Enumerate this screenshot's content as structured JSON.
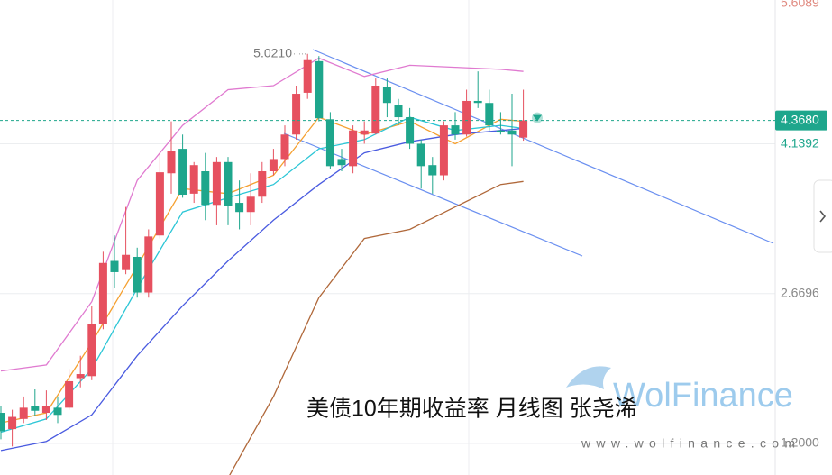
{
  "chart_data": {
    "type": "candlestick",
    "open": [
      1.5,
      1.34,
      1.44,
      1.57,
      1.5,
      1.55,
      1.55,
      1.84,
      1.86,
      2.37,
      2.99,
      2.9,
      3.03,
      2.68,
      3.24,
      3.85,
      4.09,
      3.65,
      3.87,
      3.54,
      3.96,
      3.56,
      3.47,
      3.62,
      3.87,
      3.99,
      4.23,
      4.64,
      4.95,
      4.38,
      3.99,
      3.92,
      4.23,
      4.24,
      4.7,
      4.52,
      4.4,
      4.14,
      3.93,
      3.83,
      4.32,
      4.23,
      4.56,
      4.54,
      4.27,
      4.27,
      4.2
    ],
    "high": [
      1.57,
      1.53,
      1.66,
      1.73,
      1.72,
      1.66,
      1.93,
      2.06,
      2.55,
      3.08,
      3.24,
      3.52,
      3.12,
      3.3,
      4.05,
      4.36,
      4.23,
      3.96,
      4.05,
      4.01,
      4.01,
      3.78,
      3.85,
      3.96,
      4.09,
      4.32,
      4.71,
      5.021,
      5.0,
      4.45,
      4.09,
      4.32,
      4.36,
      4.78,
      4.78,
      4.58,
      4.49,
      4.18,
      4.01,
      4.36,
      4.45,
      4.67,
      4.85,
      4.67,
      4.45,
      4.63,
      4.67
    ],
    "low": [
      1.24,
      1.17,
      1.4,
      1.47,
      1.43,
      1.4,
      1.53,
      1.75,
      1.82,
      2.32,
      2.72,
      2.86,
      2.63,
      2.63,
      3.21,
      3.65,
      3.61,
      3.56,
      3.39,
      3.34,
      3.34,
      3.3,
      3.34,
      3.56,
      3.83,
      3.92,
      4.18,
      4.58,
      4.36,
      3.89,
      3.87,
      3.85,
      4.14,
      4.23,
      4.4,
      4.32,
      4.09,
      3.7,
      3.65,
      3.78,
      4.18,
      4.21,
      4.49,
      4.27,
      4.23,
      3.92,
      4.17
    ],
    "close": [
      1.32,
      1.46,
      1.55,
      1.52,
      1.57,
      1.48,
      1.81,
      1.88,
      2.37,
      2.97,
      2.88,
      3.05,
      2.68,
      3.23,
      3.86,
      4.07,
      3.64,
      3.93,
      3.54,
      3.96,
      3.53,
      3.47,
      3.62,
      3.87,
      3.99,
      4.23,
      4.63,
      4.96,
      4.39,
      3.92,
      3.93,
      4.27,
      4.27,
      4.71,
      4.54,
      4.4,
      4.14,
      3.92,
      3.83,
      4.32,
      4.23,
      4.56,
      4.54,
      4.32,
      4.25,
      4.23,
      4.37
    ],
    "up_color": "#e6505f",
    "down_color": "#1ea68c",
    "ylim": [
      0.89,
      5.55
    ],
    "yticks": [
      5.6089,
      4.1392,
      2.6696,
      {
        "value": 1.2,
        "label": "1.2000"
      }
    ],
    "grid": true,
    "last_price": {
      "value": 4.368,
      "label": "4.3680"
    },
    "high_annotation": {
      "value": 5.021,
      "label": "5.0210"
    },
    "overlay_x": [
      0,
      4,
      8,
      12,
      16,
      20,
      24,
      28,
      32,
      36,
      40,
      44,
      46
    ],
    "overlays": [
      {
        "color": "#e07ad0",
        "values": [
          1.91,
          1.97,
          2.59,
          3.78,
          4.32,
          4.67,
          4.71,
          4.98,
          4.8,
          4.91,
          4.89,
          4.87,
          4.85
        ]
      },
      {
        "color": "#f5a030",
        "values": [
          1.4,
          1.5,
          2.19,
          2.94,
          3.7,
          3.65,
          3.83,
          4.4,
          4.23,
          4.36,
          4.14,
          4.38,
          4.36
        ]
      },
      {
        "color": "#2cc6d6",
        "values": [
          1.31,
          1.44,
          1.93,
          2.72,
          3.47,
          3.61,
          3.74,
          4.09,
          4.18,
          4.4,
          4.27,
          4.32,
          4.29
        ]
      },
      {
        "color": "#4a5be0",
        "values": [
          1.13,
          1.22,
          1.48,
          2.06,
          2.55,
          2.99,
          3.39,
          3.74,
          4.05,
          4.16,
          4.23,
          4.27,
          4.29
        ]
      },
      {
        "color": "#b0683a",
        "values": [
          null,
          null,
          null,
          null,
          null,
          0.86,
          1.66,
          2.63,
          3.21,
          3.3,
          3.52,
          3.74,
          3.77
        ]
      }
    ],
    "caption": "美债10年期收益率 月线图 张尧浠",
    "brand": "WolFinance",
    "site": "www.wolfinance.com"
  }
}
